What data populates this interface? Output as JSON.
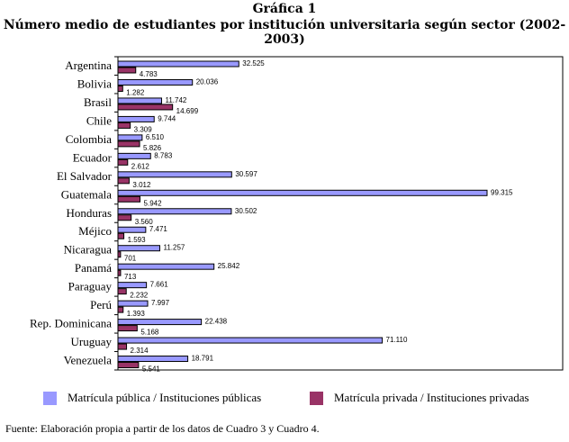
{
  "chart_data": {
    "type": "bar",
    "orientation": "horizontal",
    "title": "Gráfica 1",
    "subtitle": "Número medio de estudiantes por institución universitaria según sector (2002-2003)",
    "categories": [
      "Argentina",
      "Bolivia",
      "Brasil",
      "Chile",
      "Colombia",
      "Ecuador",
      "El Salvador",
      "Guatemala",
      "Honduras",
      "Méjico",
      "Nicaragua",
      "Panamá",
      "Paraguay",
      "Perú",
      "Rep. Dominicana",
      "Uruguay",
      "Venezuela"
    ],
    "series": [
      {
        "name": "Matrícula pública / Instituciones públicas",
        "color": "#9999ff",
        "values": [
          32525,
          20036,
          11742,
          9744,
          6510,
          8783,
          30597,
          99315,
          30502,
          7471,
          11257,
          25842,
          7661,
          7997,
          22438,
          71110,
          18791
        ],
        "labels": [
          "32.525",
          "20.036",
          "11.742",
          "9.744",
          "6.510",
          "8.783",
          "30.597",
          "99.315",
          "30.502",
          "7.471",
          "11.257",
          "25.842",
          "7.661",
          "7.997",
          "22.438",
          "71.110",
          "18.791"
        ]
      },
      {
        "name": "Matrícula privada / Instituciones privadas",
        "color": "#993366",
        "values": [
          4783,
          1282,
          14699,
          3309,
          5826,
          2612,
          3012,
          5942,
          3560,
          1593,
          701,
          713,
          2232,
          1393,
          5168,
          2314,
          5541
        ],
        "labels": [
          "4.783",
          "1.282",
          "14.699",
          "3.309",
          "5.826",
          "2.612",
          "3.012",
          "5.942",
          "3.560",
          "1.593",
          "701",
          "713",
          "2.232",
          "1.393",
          "5.168",
          "2.314",
          "5.541"
        ]
      }
    ],
    "xlim": [
      0,
      105000
    ],
    "legend_position": "bottom"
  },
  "source_note": "Fuente: Elaboración propia a partir de los datos de Cuadro 3 y Cuadro 4."
}
